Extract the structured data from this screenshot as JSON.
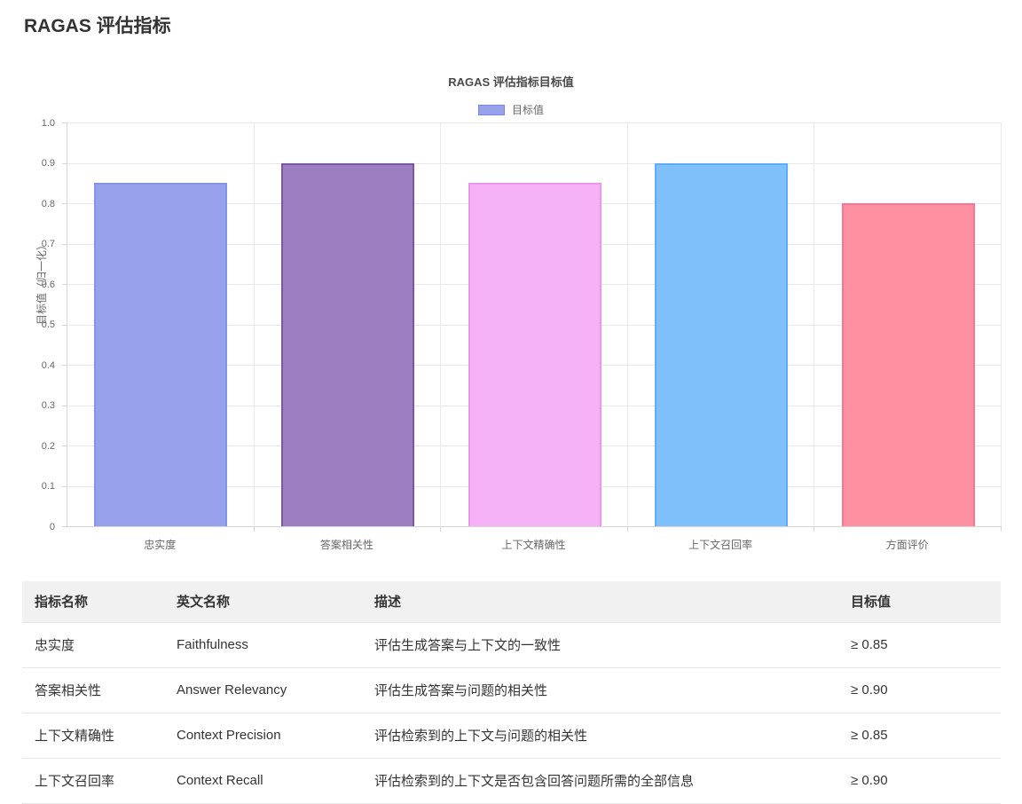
{
  "page": {
    "title": "RAGAS 评估指标"
  },
  "chart": {
    "title": "RAGAS 评估指标目标值",
    "legend": {
      "label": "目标值",
      "swatch_fill": "#98a1ec",
      "swatch_border": "#7b85e0"
    },
    "y_axis_title": "目标值（归一化）"
  },
  "chart_data": {
    "type": "bar",
    "title": "RAGAS 评估指标目标值",
    "series_name": "目标值",
    "categories": [
      "忠实度",
      "答案相关性",
      "上下文精确性",
      "上下文召回率",
      "方面评价"
    ],
    "values": [
      0.85,
      0.9,
      0.85,
      0.9,
      0.8
    ],
    "bar_fill_colors": [
      "#98a1ec",
      "#9b7fc0",
      "#f4b1f5",
      "#7fc0fb",
      "#fe90a3"
    ],
    "bar_border_colors": [
      "#8691e8",
      "#7d56a8",
      "#ec97ee",
      "#5caef9",
      "#fd7390"
    ],
    "xlabel": "",
    "ylabel": "目标值（归一化）",
    "ylim": [
      0,
      1.0
    ],
    "y_tick_labels": [
      "0",
      "0.1",
      "0.2",
      "0.3",
      "0.4",
      "0.5",
      "0.6",
      "0.7",
      "0.8",
      "0.9",
      "1.0"
    ],
    "grid": true,
    "legend_position": "top"
  },
  "table": {
    "headers": [
      "指标名称",
      "英文名称",
      "描述",
      "目标值"
    ],
    "rows": [
      [
        "忠实度",
        "Faithfulness",
        "评估生成答案与上下文的一致性",
        "≥ 0.85"
      ],
      [
        "答案相关性",
        "Answer Relevancy",
        "评估生成答案与问题的相关性",
        "≥ 0.90"
      ],
      [
        "上下文精确性",
        "Context Precision",
        "评估检索到的上下文与问题的相关性",
        "≥ 0.85"
      ],
      [
        "上下文召回率",
        "Context Recall",
        "评估检索到的上下文是否包含回答问题所需的全部信息",
        "≥ 0.90"
      ]
    ]
  }
}
